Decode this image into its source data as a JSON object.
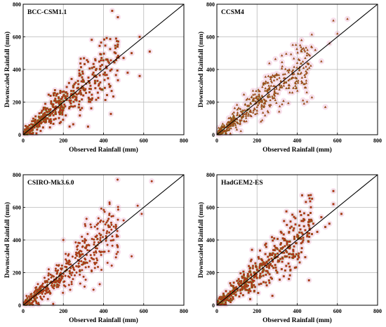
{
  "chart_data": [
    {
      "type": "scatter",
      "title": "BCC-CSM1.1",
      "xlabel": "Observed Rainfall (mm)",
      "ylabel": "Downscaled Rainfall (mm)",
      "xlim": [
        0,
        800
      ],
      "ylim": [
        0,
        800
      ],
      "xticks": [
        "0",
        "200",
        "400",
        "600",
        "800"
      ],
      "yticks": [
        "0",
        "200",
        "400",
        "600",
        "800"
      ],
      "grid": true,
      "reference_line": "1:1",
      "marker": "square",
      "n_points": 450,
      "points": [
        [
          20,
          15
        ],
        [
          45,
          40
        ],
        [
          60,
          85
        ],
        [
          80,
          60
        ],
        [
          95,
          110
        ],
        [
          110,
          95
        ],
        [
          120,
          140
        ],
        [
          135,
          120
        ],
        [
          150,
          170
        ],
        [
          160,
          130
        ],
        [
          175,
          200
        ],
        [
          185,
          160
        ],
        [
          195,
          230
        ],
        [
          205,
          185
        ],
        [
          215,
          260
        ],
        [
          230,
          210
        ],
        [
          240,
          250
        ],
        [
          250,
          290
        ],
        [
          265,
          230
        ],
        [
          275,
          310
        ],
        [
          285,
          270
        ],
        [
          300,
          330
        ],
        [
          310,
          280
        ],
        [
          325,
          350
        ],
        [
          335,
          300
        ],
        [
          350,
          380
        ],
        [
          370,
          330
        ],
        [
          385,
          420
        ],
        [
          400,
          370
        ],
        [
          420,
          460
        ],
        [
          440,
          400
        ],
        [
          470,
          540
        ],
        [
          500,
          470
        ],
        [
          520,
          380
        ],
        [
          540,
          500
        ],
        [
          580,
          360
        ],
        [
          580,
          600
        ],
        [
          630,
          510
        ]
      ]
    },
    {
      "type": "scatter",
      "title": "CCSM4",
      "xlabel": "Observed Rainfall (mm)",
      "ylabel": "Downscaled Rainfall (mm)",
      "xlim": [
        0,
        800
      ],
      "ylim": [
        0,
        800
      ],
      "xticks": [
        "0",
        "200",
        "400",
        "600",
        "800"
      ],
      "yticks": [
        "0",
        "200",
        "400",
        "600",
        "800"
      ],
      "grid": true,
      "reference_line": "1:1",
      "marker": "triangle",
      "n_points": 450,
      "points": [
        [
          20,
          30
        ],
        [
          40,
          20
        ],
        [
          60,
          80
        ],
        [
          80,
          55
        ],
        [
          100,
          120
        ],
        [
          115,
          90
        ],
        [
          130,
          150
        ],
        [
          145,
          115
        ],
        [
          160,
          180
        ],
        [
          170,
          140
        ],
        [
          185,
          210
        ],
        [
          200,
          170
        ],
        [
          210,
          240
        ],
        [
          225,
          200
        ],
        [
          240,
          270
        ],
        [
          255,
          230
        ],
        [
          270,
          300
        ],
        [
          285,
          250
        ],
        [
          300,
          340
        ],
        [
          315,
          290
        ],
        [
          330,
          370
        ],
        [
          345,
          320
        ],
        [
          360,
          400
        ],
        [
          380,
          350
        ],
        [
          400,
          440
        ],
        [
          420,
          380
        ],
        [
          440,
          470
        ],
        [
          460,
          410
        ],
        [
          490,
          520
        ],
        [
          520,
          450
        ],
        [
          540,
          170
        ],
        [
          560,
          560
        ],
        [
          580,
          700
        ],
        [
          600,
          620
        ],
        [
          650,
          710
        ]
      ]
    },
    {
      "type": "scatter",
      "title": "CSIRO-Mk3.6.0",
      "xlabel": "Observed Rainfall (mm)",
      "ylabel": "Downscaled Rainfall (mm)",
      "xlim": [
        0,
        800
      ],
      "ylim": [
        0,
        800
      ],
      "xticks": [
        "0",
        "200",
        "400",
        "600",
        "800"
      ],
      "yticks": [
        "0",
        "200",
        "400",
        "600",
        "800"
      ],
      "grid": true,
      "reference_line": "1:1",
      "marker": "circle",
      "n_points": 450,
      "points": [
        [
          20,
          25
        ],
        [
          40,
          55
        ],
        [
          60,
          30
        ],
        [
          80,
          100
        ],
        [
          95,
          70
        ],
        [
          110,
          140
        ],
        [
          125,
          100
        ],
        [
          140,
          170
        ],
        [
          155,
          125
        ],
        [
          170,
          200
        ],
        [
          185,
          150
        ],
        [
          200,
          400
        ],
        [
          210,
          180
        ],
        [
          230,
          250
        ],
        [
          245,
          200
        ],
        [
          260,
          290
        ],
        [
          275,
          235
        ],
        [
          290,
          330
        ],
        [
          310,
          260
        ],
        [
          325,
          370
        ],
        [
          340,
          290
        ],
        [
          360,
          420
        ],
        [
          380,
          330
        ],
        [
          400,
          460
        ],
        [
          420,
          260
        ],
        [
          430,
          630
        ],
        [
          450,
          400
        ],
        [
          470,
          770
        ],
        [
          500,
          520
        ],
        [
          540,
          300
        ],
        [
          570,
          610
        ],
        [
          590,
          560
        ],
        [
          640,
          760
        ]
      ]
    },
    {
      "type": "scatter",
      "title": "HadGEM2-ES",
      "xlabel": "Observed Rainfall (mm)",
      "ylabel": "Downscaled Rainfall (mm)",
      "xlim": [
        0,
        800
      ],
      "ylim": [
        0,
        800
      ],
      "xticks": [
        "0",
        "200",
        "400",
        "600",
        "800"
      ],
      "yticks": [
        "0",
        "200",
        "400",
        "600",
        "800"
      ],
      "grid": true,
      "reference_line": "1:1",
      "marker": "square",
      "n_points": 450,
      "points": [
        [
          20,
          20
        ],
        [
          40,
          45
        ],
        [
          60,
          30
        ],
        [
          80,
          90
        ],
        [
          95,
          65
        ],
        [
          110,
          130
        ],
        [
          125,
          100
        ],
        [
          140,
          160
        ],
        [
          155,
          120
        ],
        [
          170,
          190
        ],
        [
          185,
          150
        ],
        [
          200,
          220
        ],
        [
          215,
          180
        ],
        [
          230,
          250
        ],
        [
          245,
          210
        ],
        [
          260,
          280
        ],
        [
          275,
          240
        ],
        [
          290,
          310
        ],
        [
          310,
          270
        ],
        [
          325,
          350
        ],
        [
          340,
          300
        ],
        [
          360,
          390
        ],
        [
          380,
          340
        ],
        [
          400,
          420
        ],
        [
          420,
          380
        ],
        [
          440,
          460
        ],
        [
          460,
          420
        ],
        [
          480,
          500
        ],
        [
          500,
          450
        ],
        [
          520,
          540
        ],
        [
          540,
          480
        ],
        [
          560,
          500
        ],
        [
          580,
          700
        ],
        [
          580,
          620
        ],
        [
          620,
          560
        ]
      ]
    }
  ]
}
